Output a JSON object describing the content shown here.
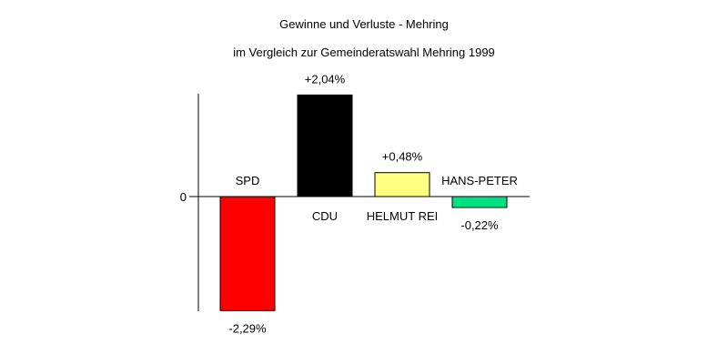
{
  "chart_data": {
    "type": "bar",
    "title": "Gewinne und Verluste - Mehring",
    "subtitle": "im Vergleich zur Gemeinderatswahl Mehring 1999",
    "categories": [
      "SPD",
      "CDU",
      "HELMUT REI",
      "HANS-PETER"
    ],
    "values": [
      -2.29,
      2.04,
      0.48,
      -0.22
    ],
    "value_labels": [
      "-2,29%",
      "+2,04%",
      "+0,48%",
      "-0,22%"
    ],
    "colors": [
      "#ff0000",
      "#000000",
      "#ffff80",
      "#00e080"
    ],
    "ylim": [
      -2.29,
      2.04
    ],
    "ytick_label": "0",
    "xlabel": "",
    "ylabel": "",
    "grid": false
  }
}
